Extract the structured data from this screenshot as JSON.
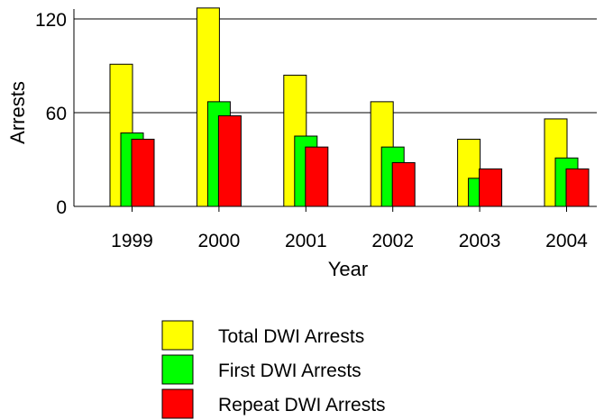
{
  "chart_data": {
    "type": "bar",
    "title": "",
    "xlabel": "Year",
    "ylabel": "Arrests",
    "categories": [
      "1999",
      "2000",
      "2001",
      "2002",
      "2003",
      "2004"
    ],
    "series": [
      {
        "name": "Total DWI Arrests",
        "values": [
          91,
          127,
          84,
          67,
          43,
          56
        ]
      },
      {
        "name": "First DWI Arrests",
        "values": [
          47,
          67,
          45,
          38,
          18,
          31
        ]
      },
      {
        "name": "Repeat DWI Arrests",
        "values": [
          43,
          58,
          38,
          28,
          24,
          24
        ]
      }
    ],
    "ylim": [
      0,
      127
    ],
    "yticks": [
      "0",
      "60",
      "120"
    ],
    "grid": true,
    "legend_position": "bottom",
    "colors": [
      "#ffff00",
      "#00ff00",
      "#ff0000"
    ]
  }
}
